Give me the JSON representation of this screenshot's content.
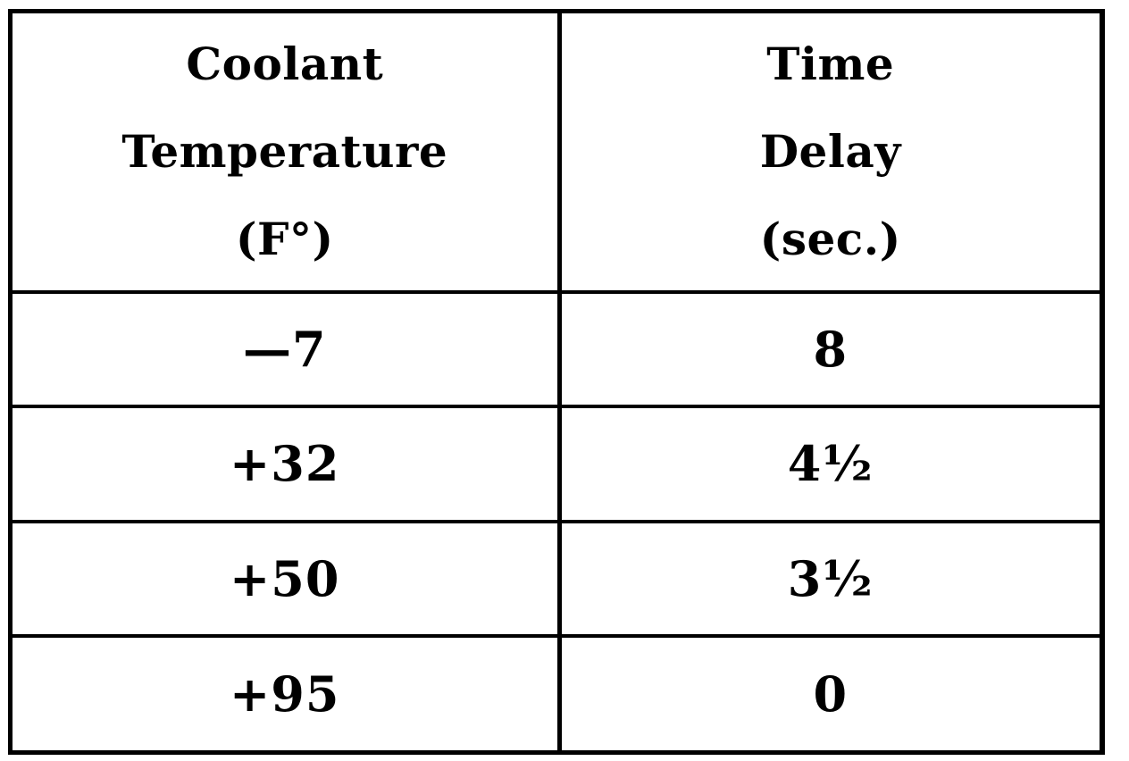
{
  "table": {
    "headers": [
      {
        "lines": [
          "Coolant",
          "Temperature",
          "(F°)"
        ]
      },
      {
        "lines": [
          "Time",
          "Delay",
          "(sec.)"
        ]
      }
    ],
    "rows": [
      {
        "temperature": "—7",
        "delay": "8"
      },
      {
        "temperature": "+32",
        "delay": "4½"
      },
      {
        "temperature": "+50",
        "delay": "3½"
      },
      {
        "temperature": "+95",
        "delay": "0"
      }
    ]
  }
}
